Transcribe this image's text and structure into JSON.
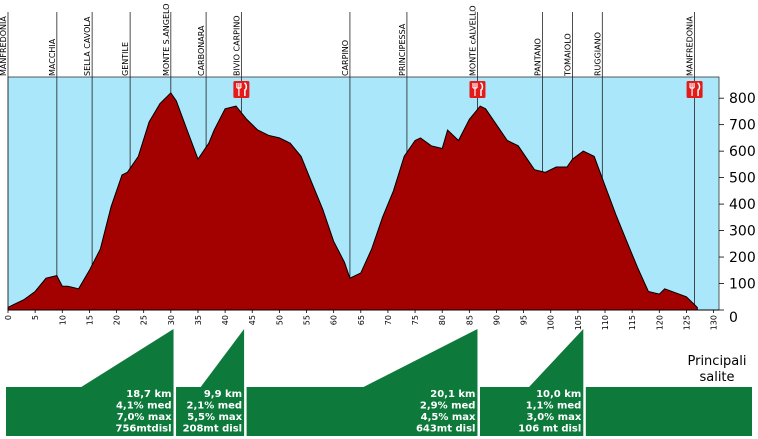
{
  "chart_data": {
    "type": "area",
    "xlim": [
      0,
      131
    ],
    "ylim": [
      0,
      880
    ],
    "x_ticks": [
      0,
      5,
      10,
      15,
      20,
      25,
      30,
      35,
      40,
      45,
      50,
      55,
      60,
      65,
      70,
      75,
      80,
      85,
      90,
      95,
      100,
      105,
      110,
      115,
      120,
      125,
      130
    ],
    "y_ticks": [
      0,
      100,
      200,
      300,
      400,
      500,
      600,
      700,
      800
    ],
    "colors": {
      "fill": "#a30000",
      "sky": "#aae7fa",
      "climb": "#0d7a3c",
      "marker": "#e31b1b"
    },
    "profile": {
      "x": [
        0,
        1,
        3,
        5,
        7,
        9,
        10,
        11,
        12,
        13,
        15,
        17,
        19,
        21,
        22,
        24,
        26,
        28,
        30,
        31,
        33,
        35,
        37,
        38,
        40,
        42,
        44,
        46,
        48,
        50,
        52,
        54,
        56,
        58,
        60,
        62,
        63,
        65,
        67,
        69,
        71,
        73,
        75,
        76,
        78,
        80,
        81,
        83,
        85,
        87,
        88,
        90,
        92,
        94,
        96,
        97,
        99,
        101,
        103,
        104,
        106,
        108,
        110,
        112,
        114,
        116,
        118,
        120,
        121,
        123,
        125,
        126,
        127
      ],
      "y": [
        10,
        20,
        40,
        70,
        120,
        130,
        90,
        90,
        85,
        80,
        150,
        230,
        390,
        510,
        520,
        580,
        710,
        780,
        820,
        790,
        680,
        570,
        630,
        680,
        760,
        770,
        720,
        680,
        660,
        650,
        630,
        580,
        480,
        380,
        260,
        180,
        120,
        140,
        230,
        350,
        450,
        580,
        640,
        650,
        620,
        610,
        680,
        640,
        720,
        770,
        760,
        700,
        640,
        620,
        560,
        530,
        520,
        540,
        540,
        570,
        600,
        580,
        470,
        360,
        260,
        160,
        70,
        60,
        80,
        65,
        50,
        30,
        10
      ]
    },
    "localities": [
      {
        "name": "MANFREDONIA",
        "km": 0
      },
      {
        "name": "MACCHIA",
        "km": 9
      },
      {
        "name": "SELLA CAVOLA",
        "km": 15.5
      },
      {
        "name": "GENTILE",
        "km": 22.5
      },
      {
        "name": "MONTE S.ANGELO",
        "km": 30
      },
      {
        "name": "CARBONARA",
        "km": 36.5
      },
      {
        "name": "BIVIO CARPINO",
        "km": 43
      },
      {
        "name": "CARPINO",
        "km": 63
      },
      {
        "name": "PRINCIPESSA",
        "km": 73.5
      },
      {
        "name": "MONTE cALVELLO",
        "km": 86.5
      },
      {
        "name": "PANTANO",
        "km": 98.5
      },
      {
        "name": "TOMAIOLO",
        "km": 104
      },
      {
        "name": "RUGGIANO",
        "km": 109.5
      },
      {
        "name": "MANFREDONIA",
        "km": 126.5
      }
    ],
    "feed_zones_km": [
      43,
      86.5,
      126.5
    ],
    "climbs": [
      {
        "start_km": 13.5,
        "end_km": 30.5,
        "length": "18,7 km",
        "avg": "4,1% med",
        "max": "7,0% max",
        "gain": "756mtdisl"
      },
      {
        "start_km": 35.5,
        "end_km": 43.5,
        "length": "9,9 km",
        "avg": "2,1% med",
        "max": "5,5% max",
        "gain": "208mt disl"
      },
      {
        "start_km": 65.5,
        "end_km": 86.5,
        "length": "20,1 km",
        "avg": "2,9% med",
        "max": "4,5% max",
        "gain": "643mt disl"
      },
      {
        "start_km": 96,
        "end_km": 106,
        "length": "10,0 km",
        "avg": "1,1% med",
        "max": "3,0% max",
        "gain": "106 mt disl"
      }
    ],
    "legend_lines": [
      "Principali",
      "salite"
    ]
  }
}
